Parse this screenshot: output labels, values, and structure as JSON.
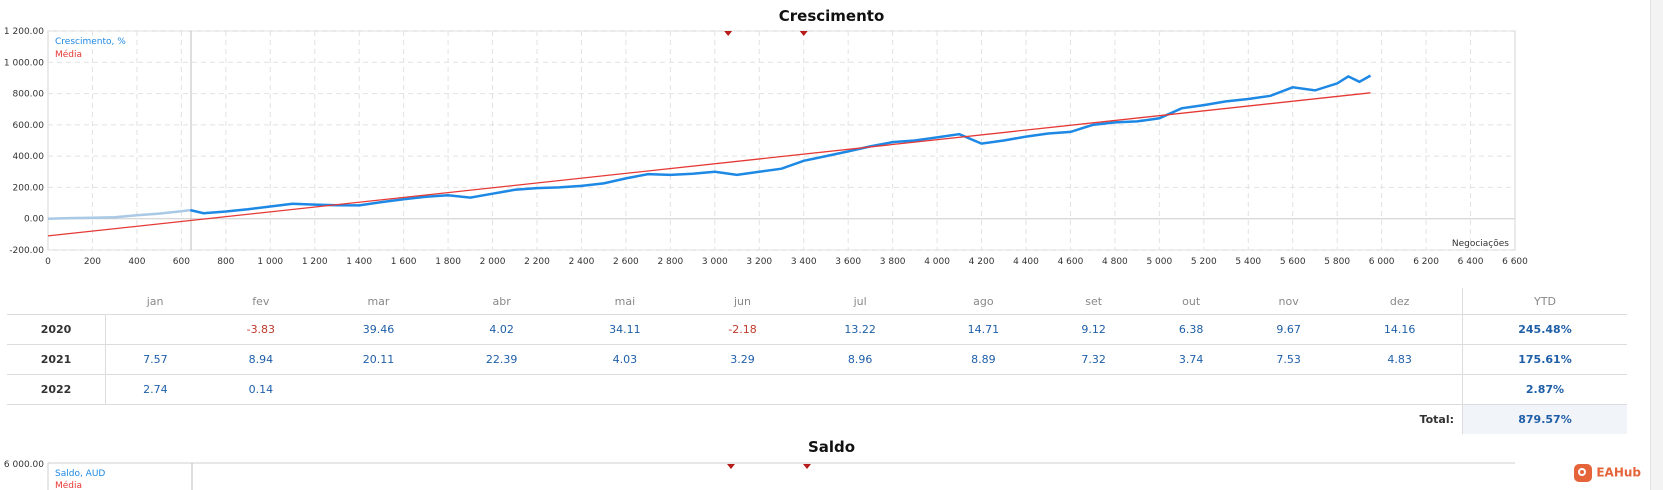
{
  "chart_data": [
    {
      "type": "line",
      "title": "Crescimento",
      "xlabel": "Negociações",
      "ylabel": "",
      "ylim": [
        -200,
        1200
      ],
      "xlim": [
        0,
        6600
      ],
      "y_ticks": [
        "1 200.00",
        "1 000.00",
        "800.00",
        "600.00",
        "400.00",
        "200.00",
        "0.00",
        "-200.00"
      ],
      "x_ticks": [
        "0",
        "200",
        "400",
        "600",
        "800",
        "1 000",
        "1 200",
        "1 400",
        "1 600",
        "1 800",
        "2 000",
        "2 200",
        "2 400",
        "2 600",
        "2 800",
        "3 000",
        "3 200",
        "3 400",
        "3 600",
        "3 800",
        "4 000",
        "4 200",
        "4 400",
        "4 600",
        "4 800",
        "5 000",
        "5 200",
        "5 400",
        "5 600",
        "5 800",
        "6 000",
        "6 200",
        "6 400",
        "6 600"
      ],
      "grid": true,
      "legend_position": "top-left",
      "series": [
        {
          "name": "Crescimento, %",
          "color": "#1e88e5",
          "x": [
            0,
            100,
            200,
            300,
            400,
            500,
            600,
            640,
            700,
            800,
            900,
            1000,
            1100,
            1200,
            1300,
            1400,
            1500,
            1600,
            1700,
            1800,
            1900,
            2000,
            2100,
            2200,
            2300,
            2400,
            2500,
            2600,
            2700,
            2800,
            2900,
            3000,
            3100,
            3200,
            3300,
            3400,
            3500,
            3600,
            3700,
            3800,
            3900,
            4000,
            4100,
            4200,
            4300,
            4400,
            4500,
            4600,
            4700,
            4800,
            4900,
            5000,
            5100,
            5200,
            5300,
            5400,
            5500,
            5600,
            5700,
            5800,
            5850,
            5900,
            5950
          ],
          "values": [
            0,
            4,
            6,
            10,
            22,
            33,
            48,
            55,
            35,
            46,
            60,
            78,
            96,
            90,
            86,
            85,
            106,
            125,
            140,
            150,
            135,
            160,
            185,
            196,
            200,
            210,
            226,
            258,
            285,
            280,
            288,
            300,
            280,
            300,
            320,
            370,
            400,
            430,
            462,
            490,
            500,
            520,
            540,
            480,
            500,
            525,
            545,
            555,
            600,
            616,
            622,
            642,
            706,
            726,
            750,
            765,
            786,
            840,
            820,
            865,
            910,
            875,
            915
          ]
        },
        {
          "name": "Média",
          "color": "#e53935",
          "x": [
            0,
            5950
          ],
          "values": [
            -110,
            805
          ]
        }
      ],
      "markers_top": [
        3060,
        3400
      ]
    },
    {
      "type": "line",
      "title": "Saldo",
      "y_ticks": [
        "6 000.00"
      ],
      "legend_position": "top-left",
      "series": [
        {
          "name": "Saldo, AUD",
          "color": "#1e88e5"
        },
        {
          "name": "Média",
          "color": "#e53935"
        }
      ]
    }
  ],
  "monthly": {
    "columns": [
      "jan",
      "fev",
      "mar",
      "abr",
      "mai",
      "jun",
      "jul",
      "ago",
      "set",
      "out",
      "nov",
      "dez"
    ],
    "ytd_label": "YTD",
    "rows": [
      {
        "year": "2020",
        "values": [
          "",
          "-3.83",
          "39.46",
          "4.02",
          "34.11",
          "-2.18",
          "13.22",
          "14.71",
          "9.12",
          "6.38",
          "9.67",
          "14.16"
        ],
        "ytd": "245.48%"
      },
      {
        "year": "2021",
        "values": [
          "7.57",
          "8.94",
          "20.11",
          "22.39",
          "4.03",
          "3.29",
          "8.96",
          "8.89",
          "7.32",
          "3.74",
          "7.53",
          "4.83"
        ],
        "ytd": "175.61%"
      },
      {
        "year": "2022",
        "values": [
          "2.74",
          "0.14",
          "",
          "",
          "",
          "",
          "",
          "",
          "",
          "",
          "",
          ""
        ],
        "ytd": "2.87%"
      }
    ],
    "total_label": "Total:",
    "total_value": "879.57%"
  },
  "watermark": "EAHub",
  "colors": {
    "growth": "#1e88e5",
    "average": "#e53935",
    "early": "#a9c9e6",
    "negative": "#c0392b",
    "positive": "#1f5fa8"
  }
}
